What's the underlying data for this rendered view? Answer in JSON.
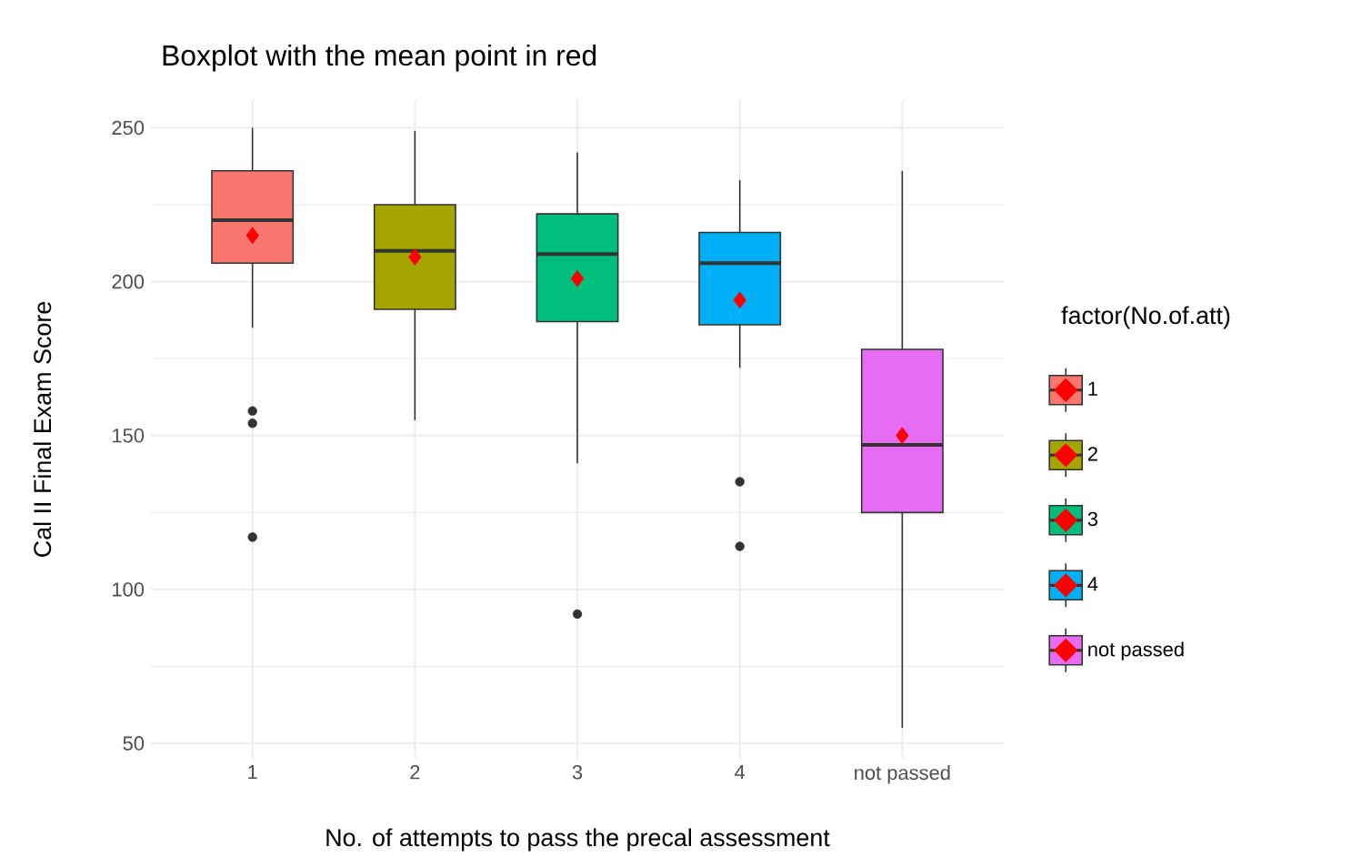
{
  "chart_data": {
    "type": "box",
    "title": "Boxplot with the mean point in red",
    "xlabel": "No. of attempts to pass the precal assessment",
    "ylabel": "Cal II Final Exam Score",
    "legend_title": "factor(No.of.att)",
    "legend": "right",
    "categories": [
      "1",
      "2",
      "3",
      "4",
      "not passed"
    ],
    "series": [
      {
        "name": "1",
        "color": "#f8766d",
        "boxes": [
          {
            "low": 185,
            "q1": 206,
            "median": 220,
            "q3": 236,
            "high": 250,
            "mean": 215,
            "outliers": [
              158,
              154,
              117
            ]
          },
          null,
          null,
          null,
          null
        ]
      },
      {
        "name": "2",
        "color": "#a3a500",
        "boxes": [
          null,
          {
            "low": 155,
            "q1": 191,
            "median": 210,
            "q3": 225,
            "high": 249,
            "mean": 208
          },
          null,
          null,
          null
        ]
      },
      {
        "name": "3",
        "color": "#00bf7d",
        "boxes": [
          null,
          null,
          {
            "low": 141,
            "q1": 187,
            "median": 209,
            "q3": 222,
            "high": 242,
            "mean": 201,
            "outliers": [
              92
            ]
          },
          null,
          null
        ]
      },
      {
        "name": "4",
        "color": "#00b0f6",
        "boxes": [
          null,
          null,
          null,
          {
            "low": 172,
            "q1": 186,
            "median": 206,
            "q3": 216,
            "high": 233,
            "mean": 194,
            "outliers": [
              135,
              114
            ]
          },
          null
        ]
      },
      {
        "name": "not passed",
        "color": "#e76bf3",
        "boxes": [
          null,
          null,
          null,
          null,
          {
            "low": 55,
            "q1": 125,
            "median": 147,
            "q3": 178,
            "high": 236,
            "mean": 150
          }
        ]
      }
    ],
    "ylim": [
      45,
      259
    ],
    "yticks": [
      50,
      100,
      150,
      200,
      250
    ],
    "grid": true
  }
}
